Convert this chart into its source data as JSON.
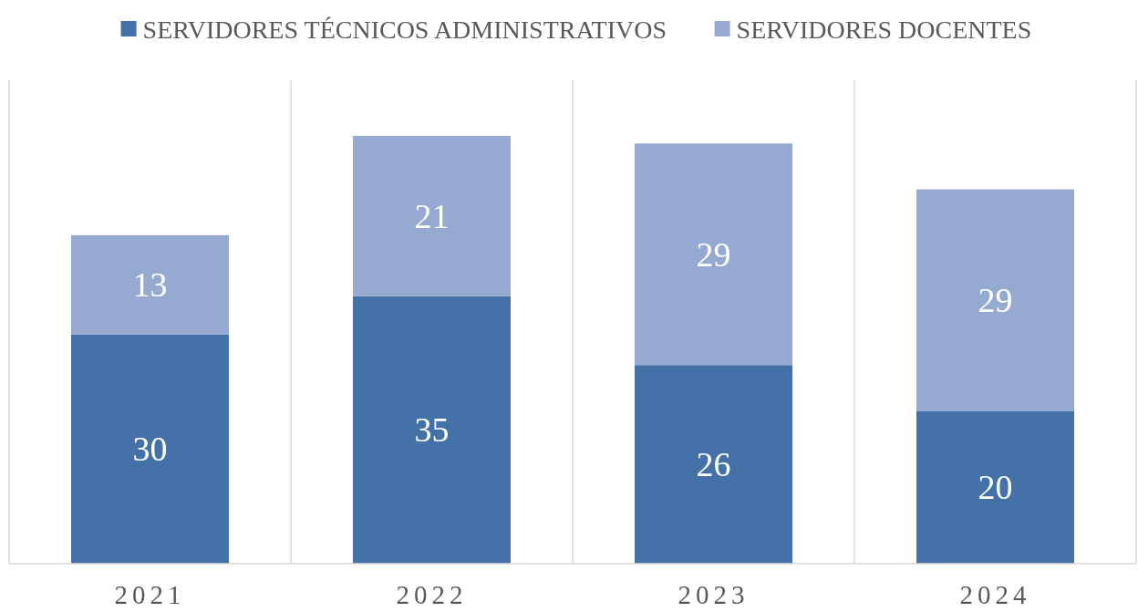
{
  "chart_data": {
    "type": "bar",
    "stacked": true,
    "categories": [
      "2021",
      "2022",
      "2023",
      "2024"
    ],
    "series": [
      {
        "name": "SERVIDORES TÉCNICOS ADMINISTRATIVOS",
        "color": "#4472a8",
        "values": [
          30,
          35,
          26,
          20
        ]
      },
      {
        "name": "SERVIDORES DOCENTES",
        "color": "#95a9d1",
        "values": [
          13,
          21,
          29,
          29
        ]
      }
    ],
    "data_labels": true,
    "grid": "x",
    "legend": "top"
  }
}
